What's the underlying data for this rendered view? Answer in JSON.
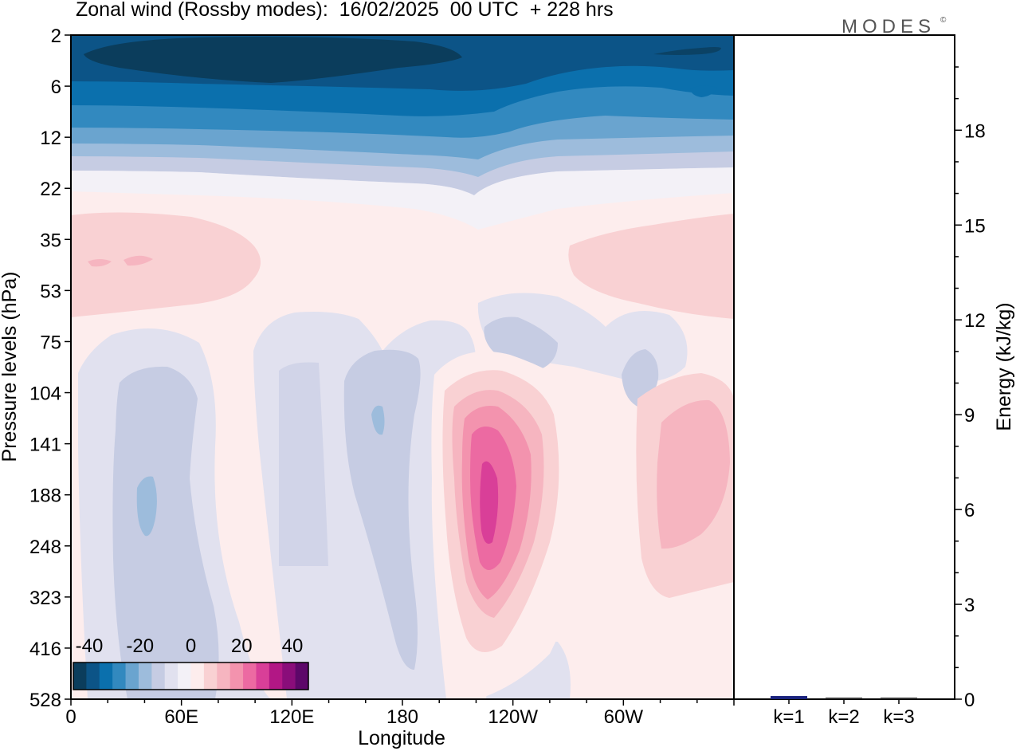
{
  "title": "Zonal wind (Rossby modes):  16/02/2025  00 UTC  + 228 hrs",
  "brand": "MODES",
  "brand_mark": "©",
  "chart_data": [
    {
      "type": "heatmap",
      "title": "Zonal wind (Rossby modes):  16/02/2025  00 UTC  + 228 hrs",
      "xlabel": "Longitude",
      "ylabel": "Pressure levels (hPa)",
      "x_ticks": [
        "0",
        "60E",
        "120E",
        "180",
        "120W",
        "60W"
      ],
      "y_ticks": [
        "2",
        "6",
        "12",
        "22",
        "35",
        "53",
        "75",
        "104",
        "141",
        "188",
        "248",
        "323",
        "416",
        "528"
      ],
      "colorbar": {
        "tick_labels": [
          "-40",
          "-20",
          "0",
          "20",
          "40"
        ],
        "colors": [
          "#0b3d5c",
          "#0c5487",
          "#0b70ad",
          "#3289bf",
          "#6aa4cf",
          "#9dbcdc",
          "#c6cce3",
          "#e1e1ef",
          "#f3f1f7",
          "#fdeded",
          "#f9d1d3",
          "#f6b5c0",
          "#f393ae",
          "#ec6aa2",
          "#d93f98",
          "#b21785",
          "#8a0d7a",
          "#5d0769"
        ]
      },
      "features": [
        {
          "label": "easterly core near 2-6 hPa",
          "value_approx": -40
        },
        {
          "label": "westerly jet maximum near 120W, 190 hPa",
          "value_approx": 30
        }
      ]
    },
    {
      "type": "bar",
      "ylabel": "Energy (kJ/kg)",
      "categories": [
        "k=1",
        "k=2",
        "k=3"
      ],
      "values": [
        0.1,
        0.05,
        0.05
      ],
      "ylim": [
        0,
        20
      ],
      "y_ticks": [
        "0",
        "3",
        "6",
        "9",
        "12",
        "15",
        "18"
      ],
      "bar_colors": [
        "#1a237e",
        "#333333",
        "#333333"
      ]
    }
  ]
}
